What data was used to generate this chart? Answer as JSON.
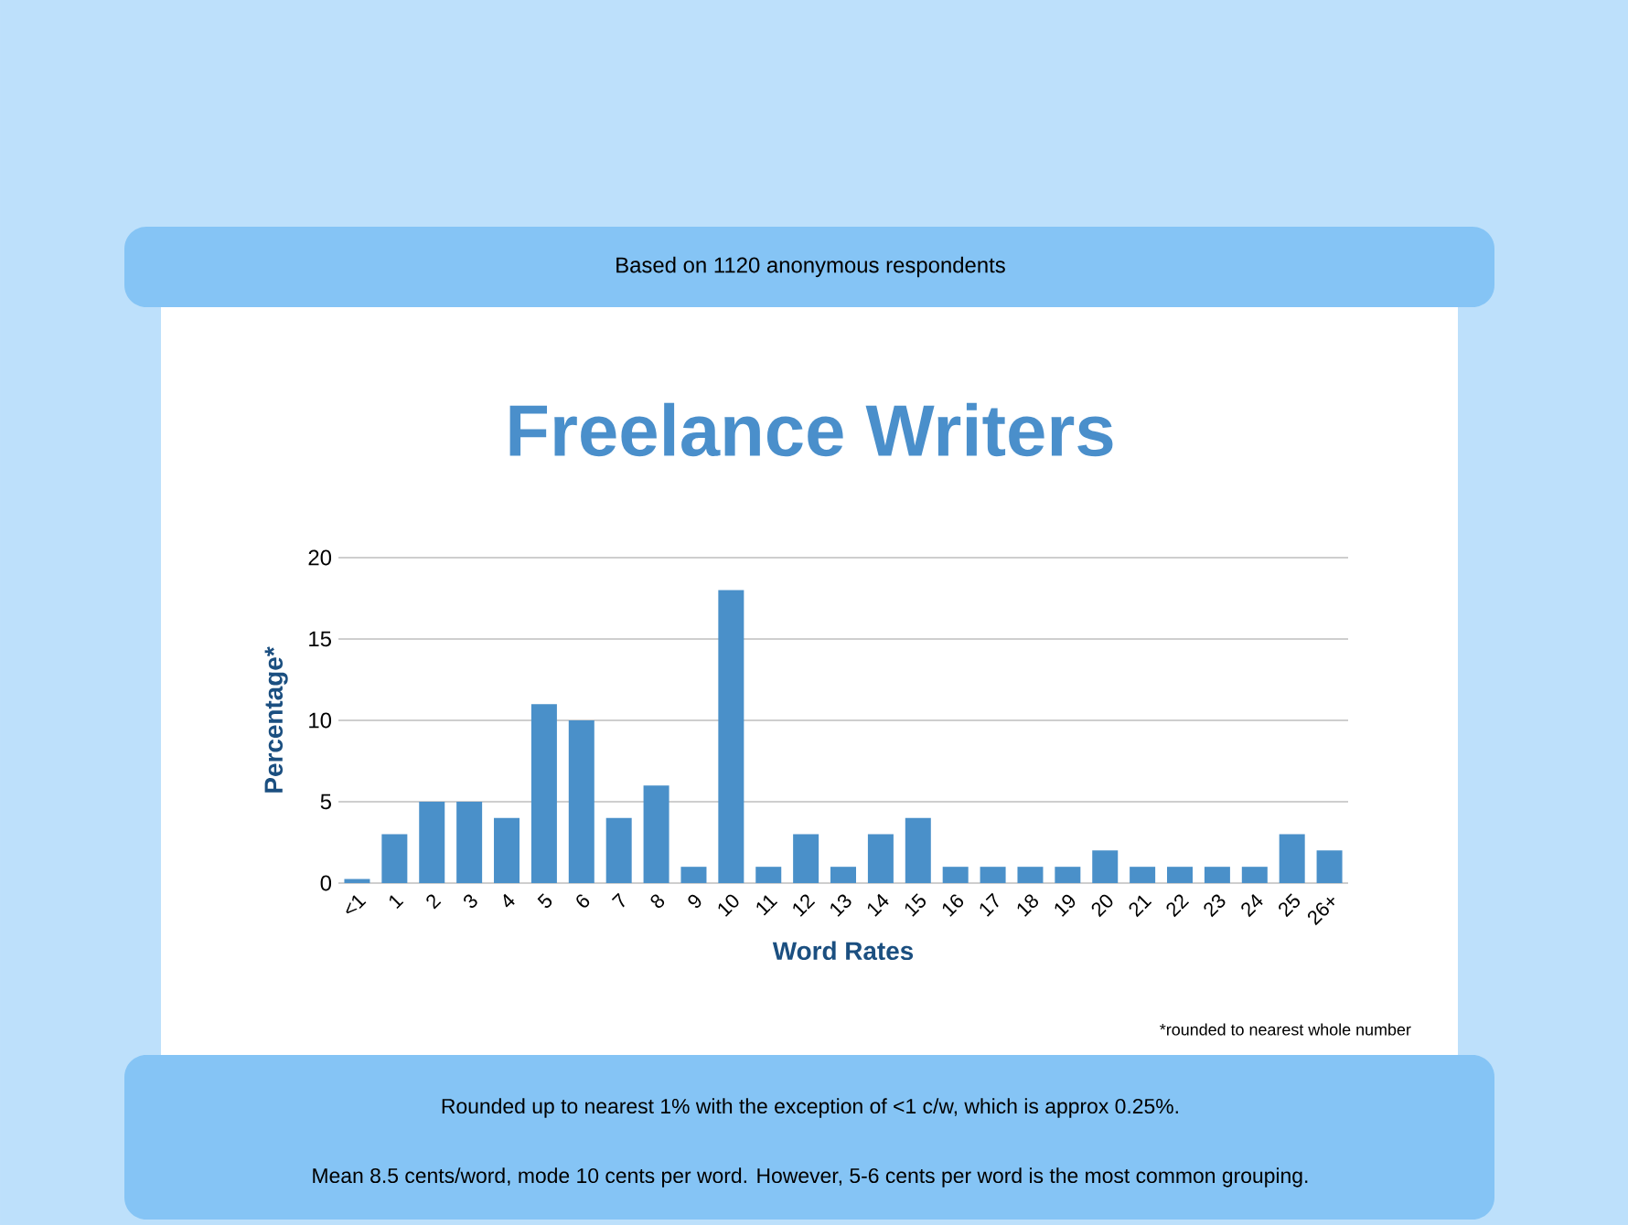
{
  "chart_data": {
    "type": "bar",
    "title": "Freelance Writers",
    "subtitle": "Based on 1120 anonymous respondents",
    "xlabel": "Word Rates",
    "ylabel": "Percentage*",
    "categories": [
      "<1",
      "1",
      "2",
      "3",
      "4",
      "5",
      "6",
      "7",
      "8",
      "9",
      "10",
      "11",
      "12",
      "13",
      "14",
      "15",
      "16",
      "17",
      "18",
      "19",
      "20",
      "21",
      "22",
      "23",
      "24",
      "25",
      "26+"
    ],
    "values": [
      0.25,
      3,
      5,
      5,
      4,
      11,
      10,
      4,
      6,
      1,
      18,
      1,
      3,
      1,
      3,
      4,
      1,
      1,
      1,
      1,
      2,
      1,
      1,
      1,
      1,
      3,
      2
    ],
    "color": "#4a90c9",
    "ylim": [
      0,
      20
    ],
    "yticks": [
      0,
      5,
      10,
      15,
      20
    ],
    "grid": "y",
    "annotations": [
      "*rounded to nearest whole number",
      "Rounded up to nearest 1% with the exception of <1 c/w, which is approx 0.25%.",
      "Mean 8.5 cents/word, mode 10 cents per word. However, 5-6 cents per word is the most common grouping."
    ]
  }
}
